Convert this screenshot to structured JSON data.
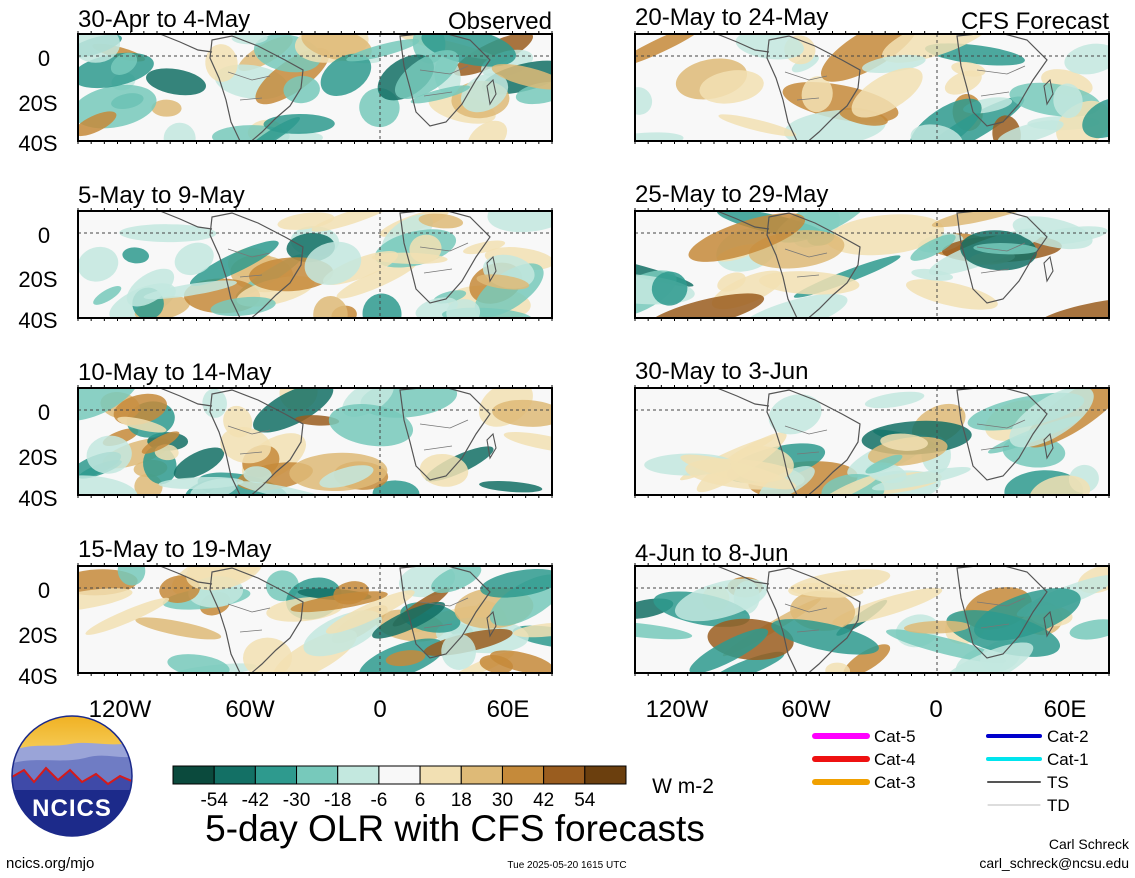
{
  "title": "5-day OLR with CFS forecasts",
  "left_label": "Observed",
  "right_label": "CFS Forecast",
  "observed_panels": [
    "30-Apr to 4-May",
    "5-May to 9-May",
    "10-May to 14-May",
    "15-May to 19-May"
  ],
  "forecast_panels": [
    "20-May to 24-May",
    "25-May to 29-May",
    "30-May to 3-Jun",
    "4-Jun to 8-Jun"
  ],
  "lat_ticks": [
    "0",
    "20S",
    "40S"
  ],
  "lon_ticks": [
    "120W",
    "60W",
    "0",
    "60E"
  ],
  "colorbar": {
    "ticks": [
      "-54",
      "-42",
      "-30",
      "-18",
      "-6",
      "6",
      "18",
      "30",
      "42",
      "54"
    ],
    "colors": [
      "#0b4a3d",
      "#137065",
      "#2e9a8e",
      "#77c9bb",
      "#c3e8df",
      "#f8f8f8",
      "#f2e0b3",
      "#deba77",
      "#c58a3a",
      "#9a5d1f",
      "#6b3f0e"
    ],
    "unit": "W m-2"
  },
  "legend": [
    {
      "label": "Cat-5",
      "color": "#ff00ff"
    },
    {
      "label": "Cat-4",
      "color": "#ee1111"
    },
    {
      "label": "Cat-3",
      "color": "#f0a000"
    },
    {
      "label": "Cat-2",
      "color": "#0000cc"
    },
    {
      "label": "Cat-1",
      "color": "#00e5ee"
    },
    {
      "label": "TS",
      "color": "#555555"
    },
    {
      "label": "TD",
      "color": "#bbbbbb"
    }
  ],
  "logo_text": "NCICS",
  "footer_left": "ncics.org/mjo",
  "timestamp": "Tue 2025-05-20 1615 UTC",
  "author": "Carl Schreck",
  "email": "carl_schreck@ncsu.edu"
}
